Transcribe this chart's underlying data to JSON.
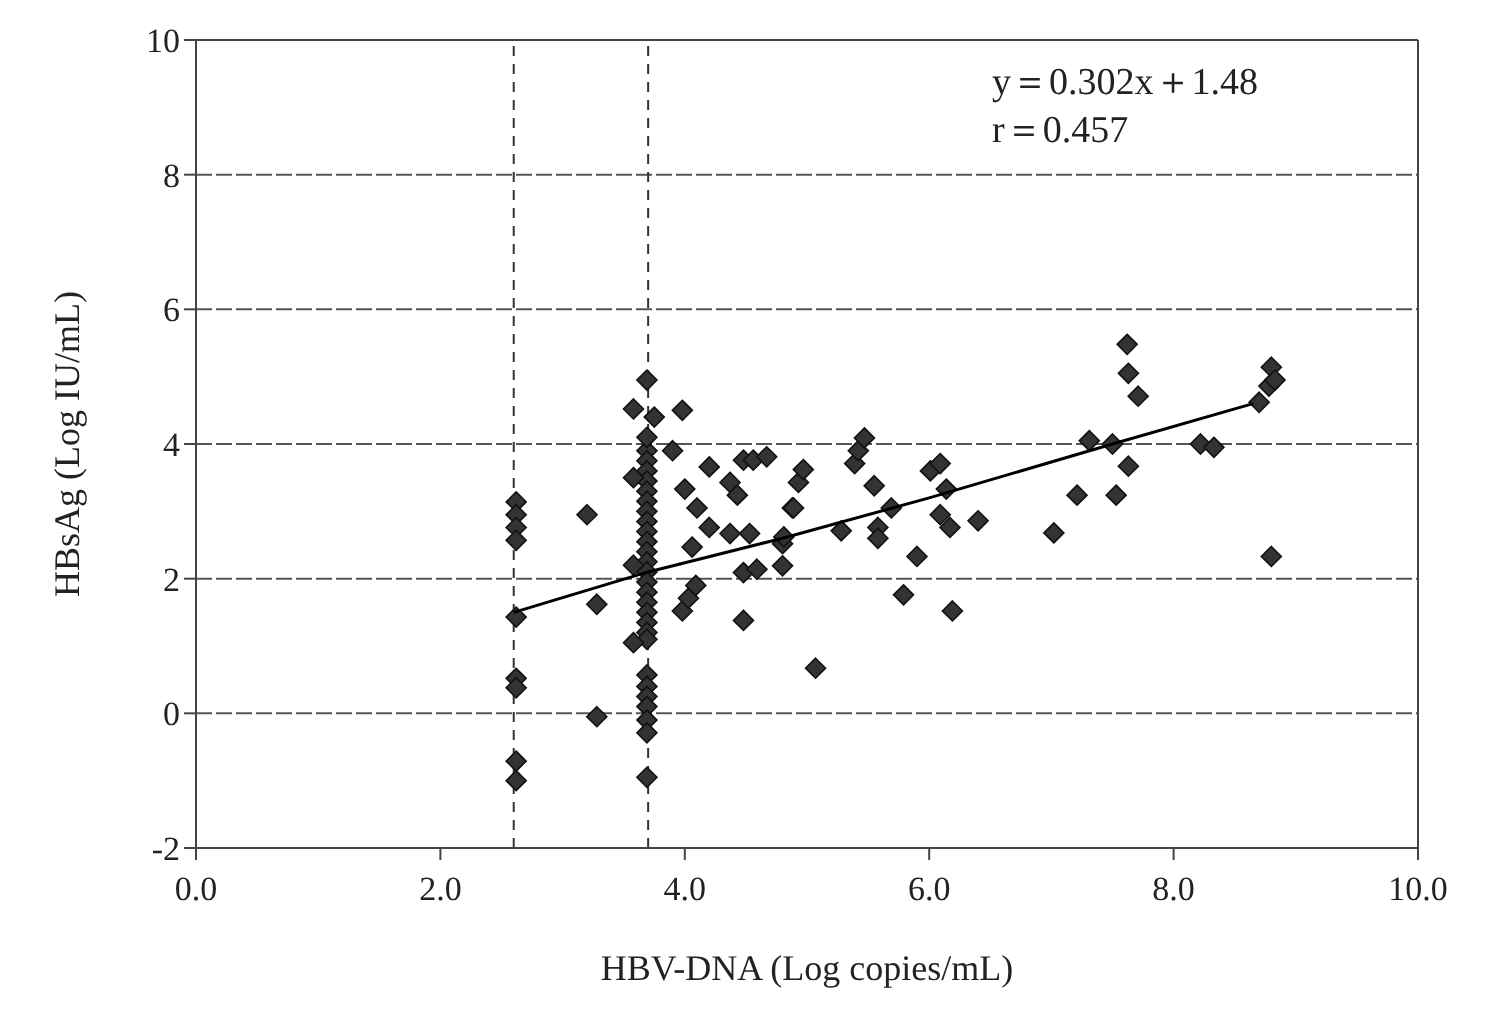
{
  "chart_data": {
    "type": "scatter",
    "xlabel": "HBV-DNA (Log copies/mL)",
    "ylabel": "HBsAg (Log IU/mL)",
    "annotations": [
      "y＝0.302x＋1.48",
      "r＝0.457"
    ],
    "xlim": [
      0,
      10
    ],
    "xticks": [
      {
        "value": 0,
        "label": "0.0"
      },
      {
        "value": 2,
        "label": "2.0"
      },
      {
        "value": 4,
        "label": "4.0"
      },
      {
        "value": 6,
        "label": "6.0"
      },
      {
        "value": 8,
        "label": "8.0"
      },
      {
        "value": 10,
        "label": "10.0"
      }
    ],
    "ylim": [
      -2,
      10
    ],
    "yticks": [
      -2,
      0,
      2,
      4,
      6,
      8,
      10
    ],
    "grid": "y",
    "ref_lines": [
      {
        "axis": "x",
        "value": 2.6,
        "line_style": "dashed",
        "color": "#333333"
      },
      {
        "axis": "x",
        "value": 3.7,
        "line_style": "dashed",
        "color": "#333333"
      }
    ],
    "series": [
      {
        "marker": "diamond",
        "color": "#333333",
        "x": [
          2.62,
          2.62,
          2.62,
          2.62,
          2.62,
          2.62,
          2.62,
          2.62,
          2.62,
          3.2,
          3.28,
          3.28,
          3.69,
          3.58,
          3.75,
          3.98,
          3.69,
          3.69,
          3.69,
          3.69,
          3.69,
          3.69,
          3.69,
          3.69,
          3.69,
          3.69,
          3.69,
          3.69,
          3.69,
          3.69,
          3.69,
          3.69,
          3.69,
          3.69,
          3.69,
          3.69,
          3.69,
          3.58,
          3.58,
          3.58,
          3.69,
          3.69,
          3.69,
          3.69,
          3.69,
          3.69,
          3.69,
          3.9,
          4.0,
          4.1,
          4.2,
          4.37,
          4.53,
          4.37,
          4.43,
          4.2,
          4.48,
          4.56,
          4.67,
          3.98,
          4.03,
          4.09,
          4.06,
          4.48,
          4.59,
          4.48,
          4.8,
          4.8,
          4.93,
          4.88,
          4.81,
          4.89,
          4.97,
          5.07,
          5.28,
          5.39,
          5.42,
          5.47,
          5.55,
          5.69,
          5.58,
          5.58,
          5.79,
          5.9,
          6.01,
          6.09,
          6.14,
          6.09,
          6.17,
          6.19,
          6.4,
          7.02,
          7.21,
          7.31,
          7.53,
          7.5,
          7.63,
          7.62,
          7.63,
          7.71,
          8.22,
          8.33,
          8.7,
          8.78,
          8.8,
          8.83,
          8.8
        ],
        "values": [
          3.14,
          2.95,
          2.76,
          2.57,
          1.43,
          0.52,
          0.38,
          -0.71,
          -1.0,
          2.95,
          1.62,
          -0.05,
          4.95,
          4.52,
          4.4,
          4.5,
          3.9,
          3.75,
          3.6,
          3.45,
          3.3,
          3.15,
          3.0,
          2.85,
          2.7,
          2.55,
          2.4,
          2.25,
          2.1,
          1.95,
          1.8,
          1.65,
          1.5,
          1.35,
          1.2,
          1.1,
          4.1,
          3.5,
          2.2,
          1.05,
          0.57,
          0.4,
          0.25,
          0.1,
          -0.1,
          -0.29,
          -0.95,
          3.9,
          3.33,
          3.05,
          2.76,
          2.67,
          2.67,
          3.43,
          3.24,
          3.66,
          3.76,
          3.76,
          3.81,
          1.52,
          1.71,
          1.9,
          2.47,
          2.09,
          2.14,
          1.38,
          2.52,
          2.19,
          3.43,
          3.05,
          2.62,
          3.05,
          3.62,
          0.67,
          2.71,
          3.71,
          3.9,
          4.09,
          3.38,
          3.05,
          2.76,
          2.6,
          1.76,
          2.33,
          3.6,
          3.71,
          3.33,
          2.95,
          2.76,
          1.52,
          2.86,
          2.68,
          3.24,
          4.05,
          3.24,
          4.0,
          3.67,
          5.48,
          5.05,
          4.71,
          4.0,
          3.95,
          4.62,
          4.86,
          5.14,
          4.95,
          2.33
        ]
      },
      {
        "type": "line",
        "marker": "none",
        "color": "#000000",
        "x": [
          2.6,
          3.7,
          4.8,
          6.0,
          7.5,
          8.65
        ],
        "values": [
          1.5,
          2.1,
          2.6,
          3.2,
          4.0,
          4.6
        ]
      }
    ]
  }
}
